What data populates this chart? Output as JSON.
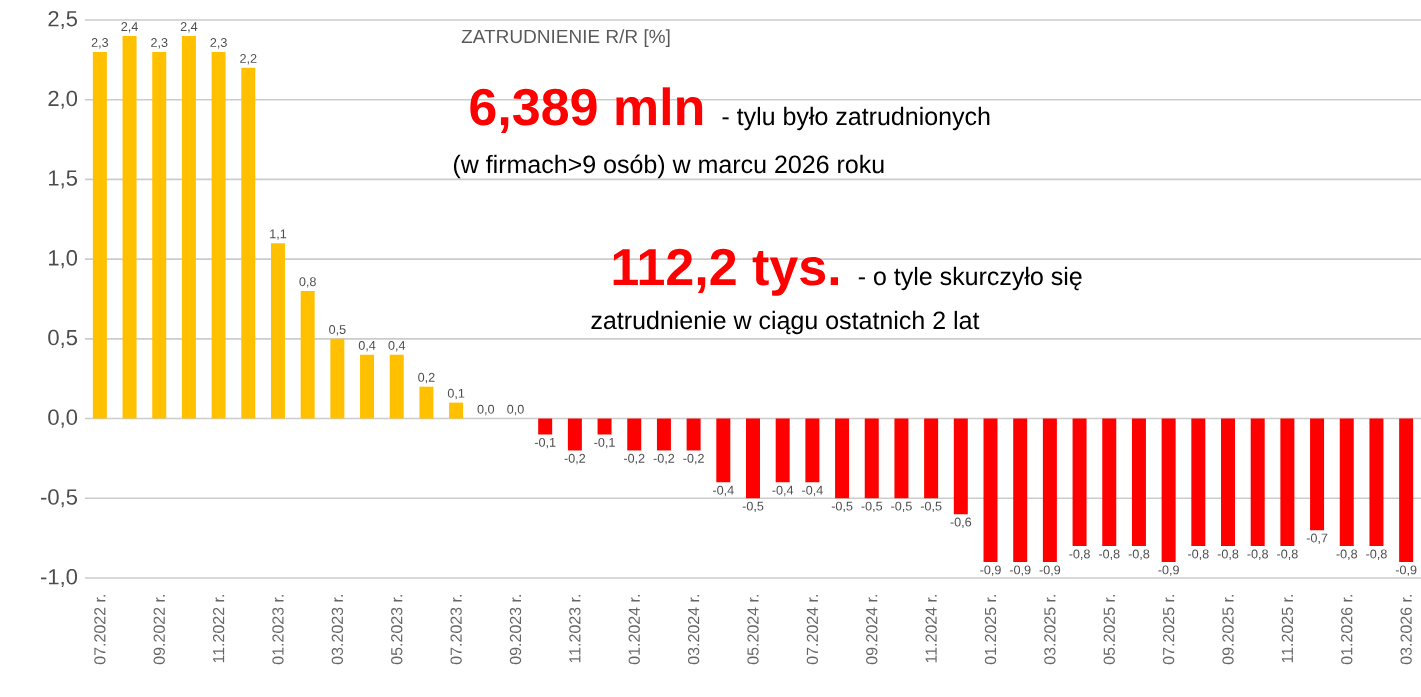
{
  "chart_data": {
    "type": "bar",
    "title": "ZATRUDNIENIE R/R [%]",
    "categories": [
      "07.2022 r.",
      null,
      "09.2022 r.",
      null,
      "11.2022 r.",
      null,
      "01.2023 r.",
      null,
      "03.2023 r.",
      null,
      "05.2023 r.",
      null,
      "07.2023 r.",
      null,
      "09.2023 r.",
      null,
      "11.2023 r.",
      null,
      "01.2024 r.",
      null,
      "03.2024 r.",
      null,
      "05.2024 r.",
      null,
      "07.2024 r.",
      null,
      "09.2024 r.",
      null,
      "11.2024 r.",
      null,
      "01.2025 r.",
      null,
      "03.2025 r.",
      null,
      "05.2025 r.",
      null,
      "07.2025 r.",
      null,
      "09.2025 r.",
      null,
      "11.2025 r.",
      null,
      "01.2026 r.",
      null,
      "03.2026 r."
    ],
    "values": [
      2.3,
      2.4,
      2.3,
      2.4,
      2.3,
      2.2,
      1.1,
      0.8,
      0.5,
      0.4,
      0.4,
      0.2,
      0.1,
      0.0,
      0.0,
      -0.1,
      -0.2,
      -0.1,
      -0.2,
      -0.2,
      -0.2,
      -0.4,
      -0.5,
      -0.4,
      -0.4,
      -0.5,
      -0.5,
      -0.5,
      -0.5,
      -0.6,
      -0.9,
      -0.9,
      -0.9,
      -0.8,
      -0.8,
      -0.8,
      -0.9,
      -0.8,
      -0.8,
      -0.8,
      -0.8,
      -0.7,
      -0.8,
      -0.8,
      -0.9
    ],
    "colors": [
      "#ffc000",
      "#ffc000",
      "#ffc000",
      "#ffc000",
      "#ffc000",
      "#ffc000",
      "#ffc000",
      "#ffc000",
      "#ffc000",
      "#ffc000",
      "#ffc000",
      "#ffc000",
      "#ffc000",
      "#ffc000",
      "#ffc000",
      "#ff0000",
      "#ff0000",
      "#ff0000",
      "#ff0000",
      "#ff0000",
      "#ff0000",
      "#ff0000",
      "#ff0000",
      "#ff0000",
      "#ff0000",
      "#ff0000",
      "#ff0000",
      "#ff0000",
      "#ff0000",
      "#ff0000",
      "#ff0000",
      "#ff0000",
      "#ff0000",
      "#ff0000",
      "#ff0000",
      "#ff0000",
      "#ff0000",
      "#ff0000",
      "#ff0000",
      "#ff0000",
      "#ff0000",
      "#ff0000",
      "#ff0000",
      "#ff0000",
      "#ff0000"
    ],
    "ylim": [
      -1.0,
      2.5
    ],
    "yticks": [
      {
        "value": -1.0,
        "label": "-1,0"
      },
      {
        "value": -0.5,
        "label": "-0,5"
      },
      {
        "value": 0.0,
        "label": "0,0"
      },
      {
        "value": 0.5,
        "label": "0,5"
      },
      {
        "value": 1.0,
        "label": "1,0"
      },
      {
        "value": 1.5,
        "label": "1,5"
      },
      {
        "value": 2.0,
        "label": "2,0"
      },
      {
        "value": 2.5,
        "label": "2,5"
      }
    ],
    "grid": "y",
    "value_labels": [
      "2,3",
      "2,4",
      "2,3",
      "2,4",
      "2,3",
      "2,2",
      "1,1",
      "0,8",
      "0,5",
      "0,4",
      "0,4",
      "0,2",
      "0,1",
      "0,0",
      "0,0",
      "-0,1",
      "-0,2",
      "-0,1",
      "-0,2",
      "-0,2",
      "-0,2",
      "-0,4",
      "-0,5",
      "-0,4",
      "-0,4",
      "-0,5",
      "-0,5",
      "-0,5",
      "-0,5",
      "-0,6",
      "-0,9",
      "-0,9",
      "-0,9",
      "-0,8",
      "-0,8",
      "-0,8",
      "-0,9",
      "-0,8",
      "-0,8",
      "-0,8",
      "-0,8",
      "-0,7",
      "-0,8",
      "-0,8",
      "-0,9"
    ],
    "annotations": [
      "6,389 mln",
      "- tylu było zatrudnionych",
      "(w firmach>9 osób) w marcu 2026 roku",
      "112,2 tys.",
      "- o tyle skurczyło się",
      "zatrudnienie w ciągu ostatnich 2 lat"
    ]
  }
}
